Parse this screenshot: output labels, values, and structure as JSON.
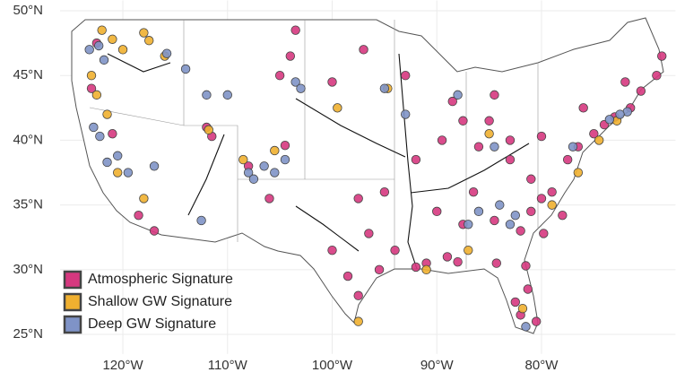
{
  "chart_data": {
    "type": "scatter",
    "xlim": [
      -126,
      -67.2
    ],
    "ylim": [
      23.5,
      50.8
    ],
    "xticks": [
      {
        "value": -120,
        "label": "120°W"
      },
      {
        "value": -110,
        "label": "110°W"
      },
      {
        "value": -100,
        "label": "100°W"
      },
      {
        "value": -90,
        "label": "90°W"
      },
      {
        "value": -80,
        "label": "80°W"
      }
    ],
    "yticks": [
      {
        "value": 25,
        "label": "25°N"
      },
      {
        "value": 30,
        "label": "30°N"
      },
      {
        "value": 35,
        "label": "35°N"
      },
      {
        "value": 40,
        "label": "40°N"
      },
      {
        "value": 45,
        "label": "45°N"
      },
      {
        "value": 50,
        "label": "50°N"
      }
    ],
    "grid": true,
    "legend": "bottom-left",
    "series": [
      {
        "name": "Atmospheric Signature",
        "color": "#d6387f",
        "x": [
          -122.5,
          -123,
          -121,
          -118.5,
          -117,
          -112,
          -111.5,
          -108,
          -106,
          -104.5,
          -105,
          -104,
          -103.5,
          -100,
          -97,
          -93,
          -92,
          -95,
          -97.5,
          -96.5,
          -95.5,
          -97.5,
          -94,
          -91,
          -89,
          -90,
          -87.5,
          -86.5,
          -84.5,
          -82,
          -81,
          -80,
          -79,
          -77.5,
          -76.5,
          -75,
          -74,
          -73,
          -71.5,
          -70.5,
          -69,
          -68.5,
          -72,
          -76,
          -80,
          -83,
          -85,
          -87.5,
          -88.5,
          -84.5,
          -86,
          -89.5,
          -82.5,
          -81.3,
          -81.5,
          -80.5,
          -82,
          -84.3,
          -88,
          -92,
          -79.8,
          -78,
          -81,
          -83,
          -100,
          -98.5
        ],
        "values": [
          47.5,
          44,
          40.5,
          34.2,
          33,
          41,
          40.3,
          38,
          35.5,
          39.6,
          45,
          46.5,
          48.5,
          44.5,
          47,
          45,
          38.5,
          36,
          35.5,
          32.8,
          30,
          28,
          31.5,
          30.5,
          31,
          34.5,
          33.5,
          36,
          33.8,
          33,
          34.5,
          35.5,
          36,
          38.5,
          39.5,
          40.5,
          41.2,
          41.8,
          42.5,
          43.8,
          45,
          46.5,
          44.5,
          42.5,
          40.3,
          40,
          41.5,
          41.5,
          43,
          43.5,
          39.5,
          40,
          27.5,
          28.5,
          30.3,
          26,
          26.5,
          30.5,
          30.6,
          30.2,
          32.8,
          34.2,
          37,
          38.5,
          31.5,
          29.5
        ]
      },
      {
        "name": "Shallow GW Signature",
        "color": "#f0b030",
        "x": [
          -122,
          -121,
          -120,
          -118,
          -117.5,
          -116,
          -123,
          -122.5,
          -121.5,
          -120.5,
          -118,
          -111.8,
          -108.5,
          -105.5,
          -94.7,
          -91,
          -87,
          -81.8,
          -79,
          -76.5,
          -74.5,
          -72.8,
          -85,
          -97.5,
          -99.5
        ],
        "values": [
          48.5,
          47.8,
          47,
          48.3,
          47.7,
          46.5,
          45,
          43.5,
          42,
          37.5,
          35.5,
          40.8,
          38.5,
          39.2,
          44,
          30,
          31.5,
          27,
          35,
          37.5,
          40,
          41.5,
          40.5,
          26,
          42.5
        ]
      },
      {
        "name": "Deep GW Signature",
        "color": "#7f93c7",
        "x": [
          -122.3,
          -121.8,
          -123.2,
          -122.8,
          -122.2,
          -121.5,
          -120.5,
          -119.5,
          -117,
          -115.8,
          -114,
          -112,
          -110,
          -108,
          -107.5,
          -106.5,
          -105.5,
          -104.5,
          -103.5,
          -103,
          -95,
          -93,
          -87,
          -86,
          -83,
          -82.5,
          -84,
          -71.8,
          -72.5,
          -73.5,
          -77,
          -88,
          -84.5,
          -81.5,
          -112.5
        ],
        "values": [
          47.3,
          46.2,
          47,
          41,
          40.3,
          38.3,
          38.8,
          37.5,
          38,
          46.7,
          45.5,
          43.5,
          43.5,
          37.5,
          37,
          38,
          37.5,
          38.5,
          44.5,
          44,
          44,
          42,
          33.5,
          34.5,
          33.5,
          34.2,
          35,
          42.2,
          42,
          41.6,
          39.5,
          43.5,
          39.5,
          25.6,
          33.8
        ]
      }
    ]
  }
}
